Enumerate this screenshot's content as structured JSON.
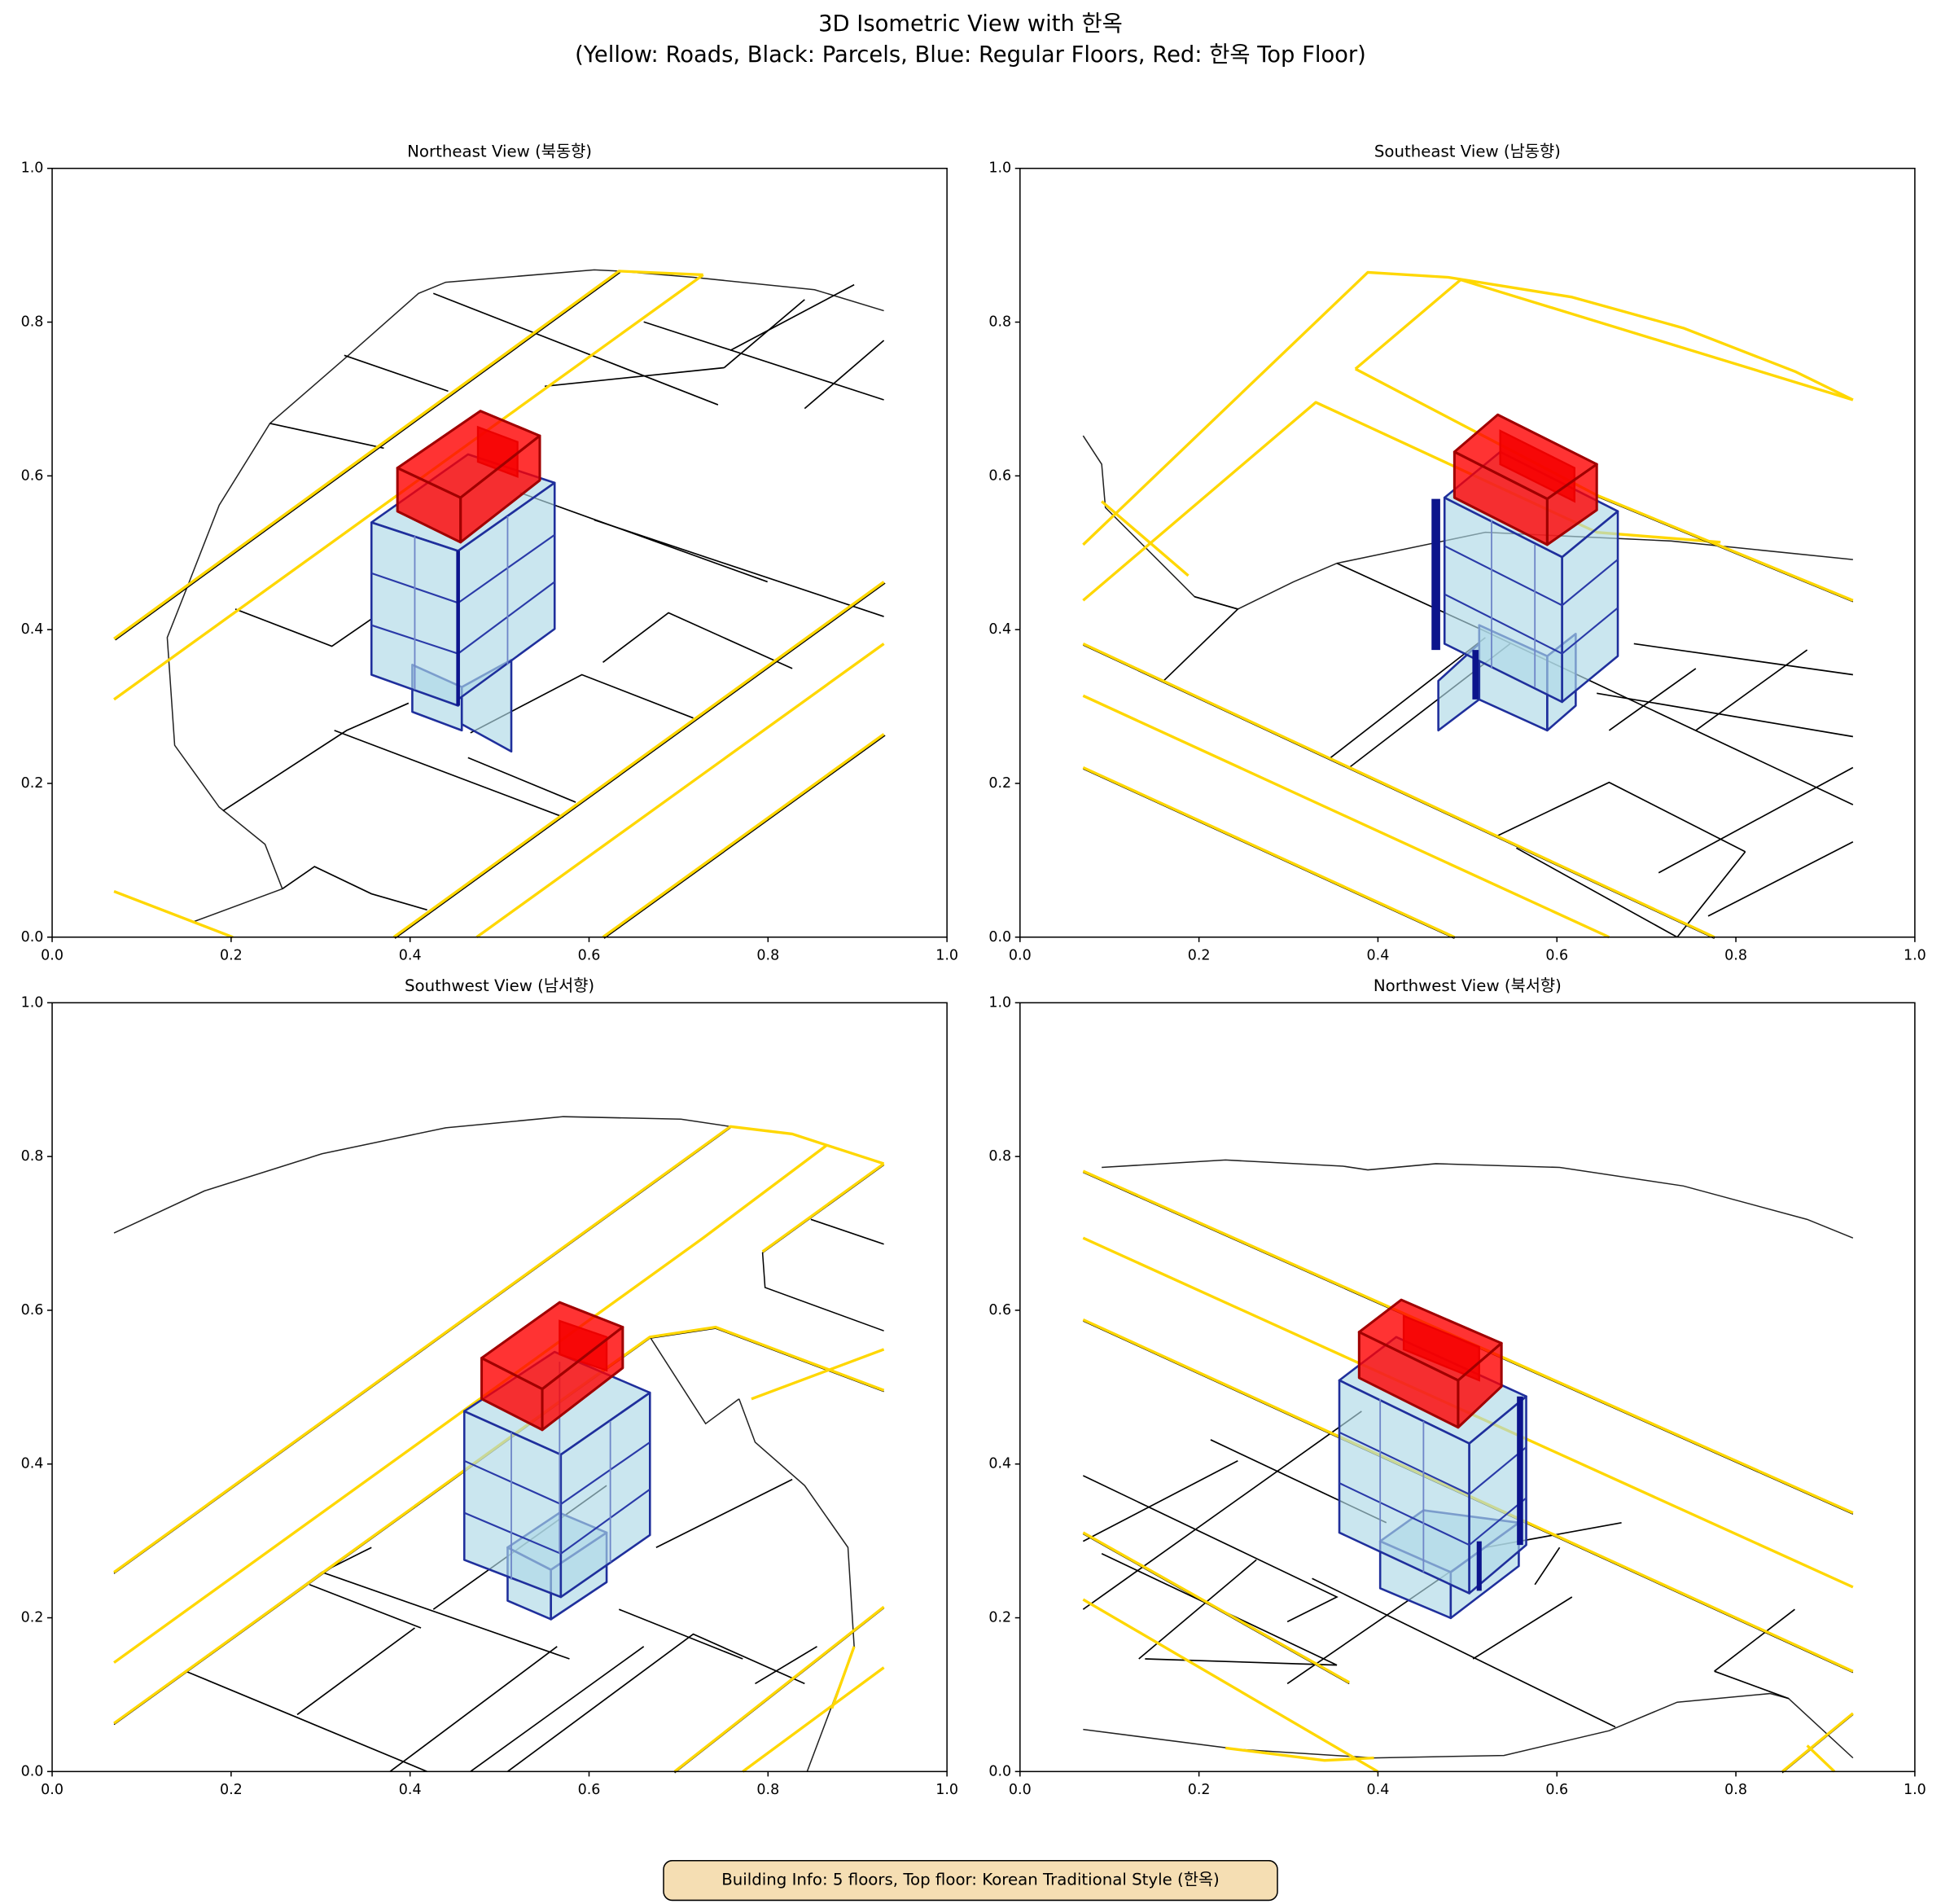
{
  "title": "3D Isometric View with 한옥",
  "subtitle": "(Yellow: Roads, Black: Parcels, Blue: Regular Floors, Red: 한옥 Top Floor)",
  "footer": "Building Info: 5 floors, Top floor: Korean Traditional Style (한옥)",
  "chart_data": [
    {
      "type": "isometric",
      "title": "Northeast View (북동향)",
      "xlim": [
        0,
        1
      ],
      "ylim": [
        0,
        1
      ],
      "xticks": [
        {
          "value": 0,
          "label": "0.0"
        },
        {
          "value": 0.2,
          "label": "0.2"
        },
        {
          "value": 0.4,
          "label": "0.4"
        },
        {
          "value": 0.6,
          "label": "0.6"
        },
        {
          "value": 0.8,
          "label": "0.8"
        },
        {
          "value": 1,
          "label": "1.0"
        }
      ],
      "yticks": [
        {
          "value": 0,
          "label": "0.0"
        },
        {
          "value": 0.2,
          "label": "0.2"
        },
        {
          "value": 0.4,
          "label": "0.4"
        },
        {
          "value": 0.6,
          "label": "0.6"
        },
        {
          "value": 0.8,
          "label": "0.8"
        },
        {
          "value": 1,
          "label": "1.0"
        }
      ]
    },
    {
      "type": "isometric",
      "title": "Southeast View (남동향)",
      "xlim": [
        0,
        1
      ],
      "ylim": [
        0,
        1
      ],
      "xticks": [
        {
          "value": 0,
          "label": "0.0"
        },
        {
          "value": 0.2,
          "label": "0.2"
        },
        {
          "value": 0.4,
          "label": "0.4"
        },
        {
          "value": 0.6,
          "label": "0.6"
        },
        {
          "value": 0.8,
          "label": "0.8"
        },
        {
          "value": 1,
          "label": "1.0"
        }
      ],
      "yticks": [
        {
          "value": 0,
          "label": "0.0"
        },
        {
          "value": 0.2,
          "label": "0.2"
        },
        {
          "value": 0.4,
          "label": "0.4"
        },
        {
          "value": 0.6,
          "label": "0.6"
        },
        {
          "value": 0.8,
          "label": "0.8"
        },
        {
          "value": 1,
          "label": "1.0"
        }
      ]
    },
    {
      "type": "isometric",
      "title": "Southwest View (남서향)",
      "xlim": [
        0,
        1
      ],
      "ylim": [
        0,
        1
      ],
      "xticks": [
        {
          "value": 0,
          "label": "0.0"
        },
        {
          "value": 0.2,
          "label": "0.2"
        },
        {
          "value": 0.4,
          "label": "0.4"
        },
        {
          "value": 0.6,
          "label": "0.6"
        },
        {
          "value": 0.8,
          "label": "0.8"
        },
        {
          "value": 1,
          "label": "1.0"
        }
      ],
      "yticks": [
        {
          "value": 0,
          "label": "0.0"
        },
        {
          "value": 0.2,
          "label": "0.2"
        },
        {
          "value": 0.4,
          "label": "0.4"
        },
        {
          "value": 0.6,
          "label": "0.6"
        },
        {
          "value": 0.8,
          "label": "0.8"
        },
        {
          "value": 1,
          "label": "1.0"
        }
      ]
    },
    {
      "type": "isometric",
      "title": "Northwest View (북서향)",
      "xlim": [
        0,
        1
      ],
      "ylim": [
        0,
        1
      ],
      "xticks": [
        {
          "value": 0,
          "label": "0.0"
        },
        {
          "value": 0.2,
          "label": "0.2"
        },
        {
          "value": 0.4,
          "label": "0.4"
        },
        {
          "value": 0.6,
          "label": "0.6"
        },
        {
          "value": 0.8,
          "label": "0.8"
        },
        {
          "value": 1,
          "label": "1.0"
        }
      ],
      "yticks": [
        {
          "value": 0,
          "label": "0.0"
        },
        {
          "value": 0.2,
          "label": "0.2"
        },
        {
          "value": 0.4,
          "label": "0.4"
        },
        {
          "value": 0.6,
          "label": "0.6"
        },
        {
          "value": 0.8,
          "label": "0.8"
        },
        {
          "value": 1,
          "label": "1.0"
        }
      ]
    }
  ]
}
